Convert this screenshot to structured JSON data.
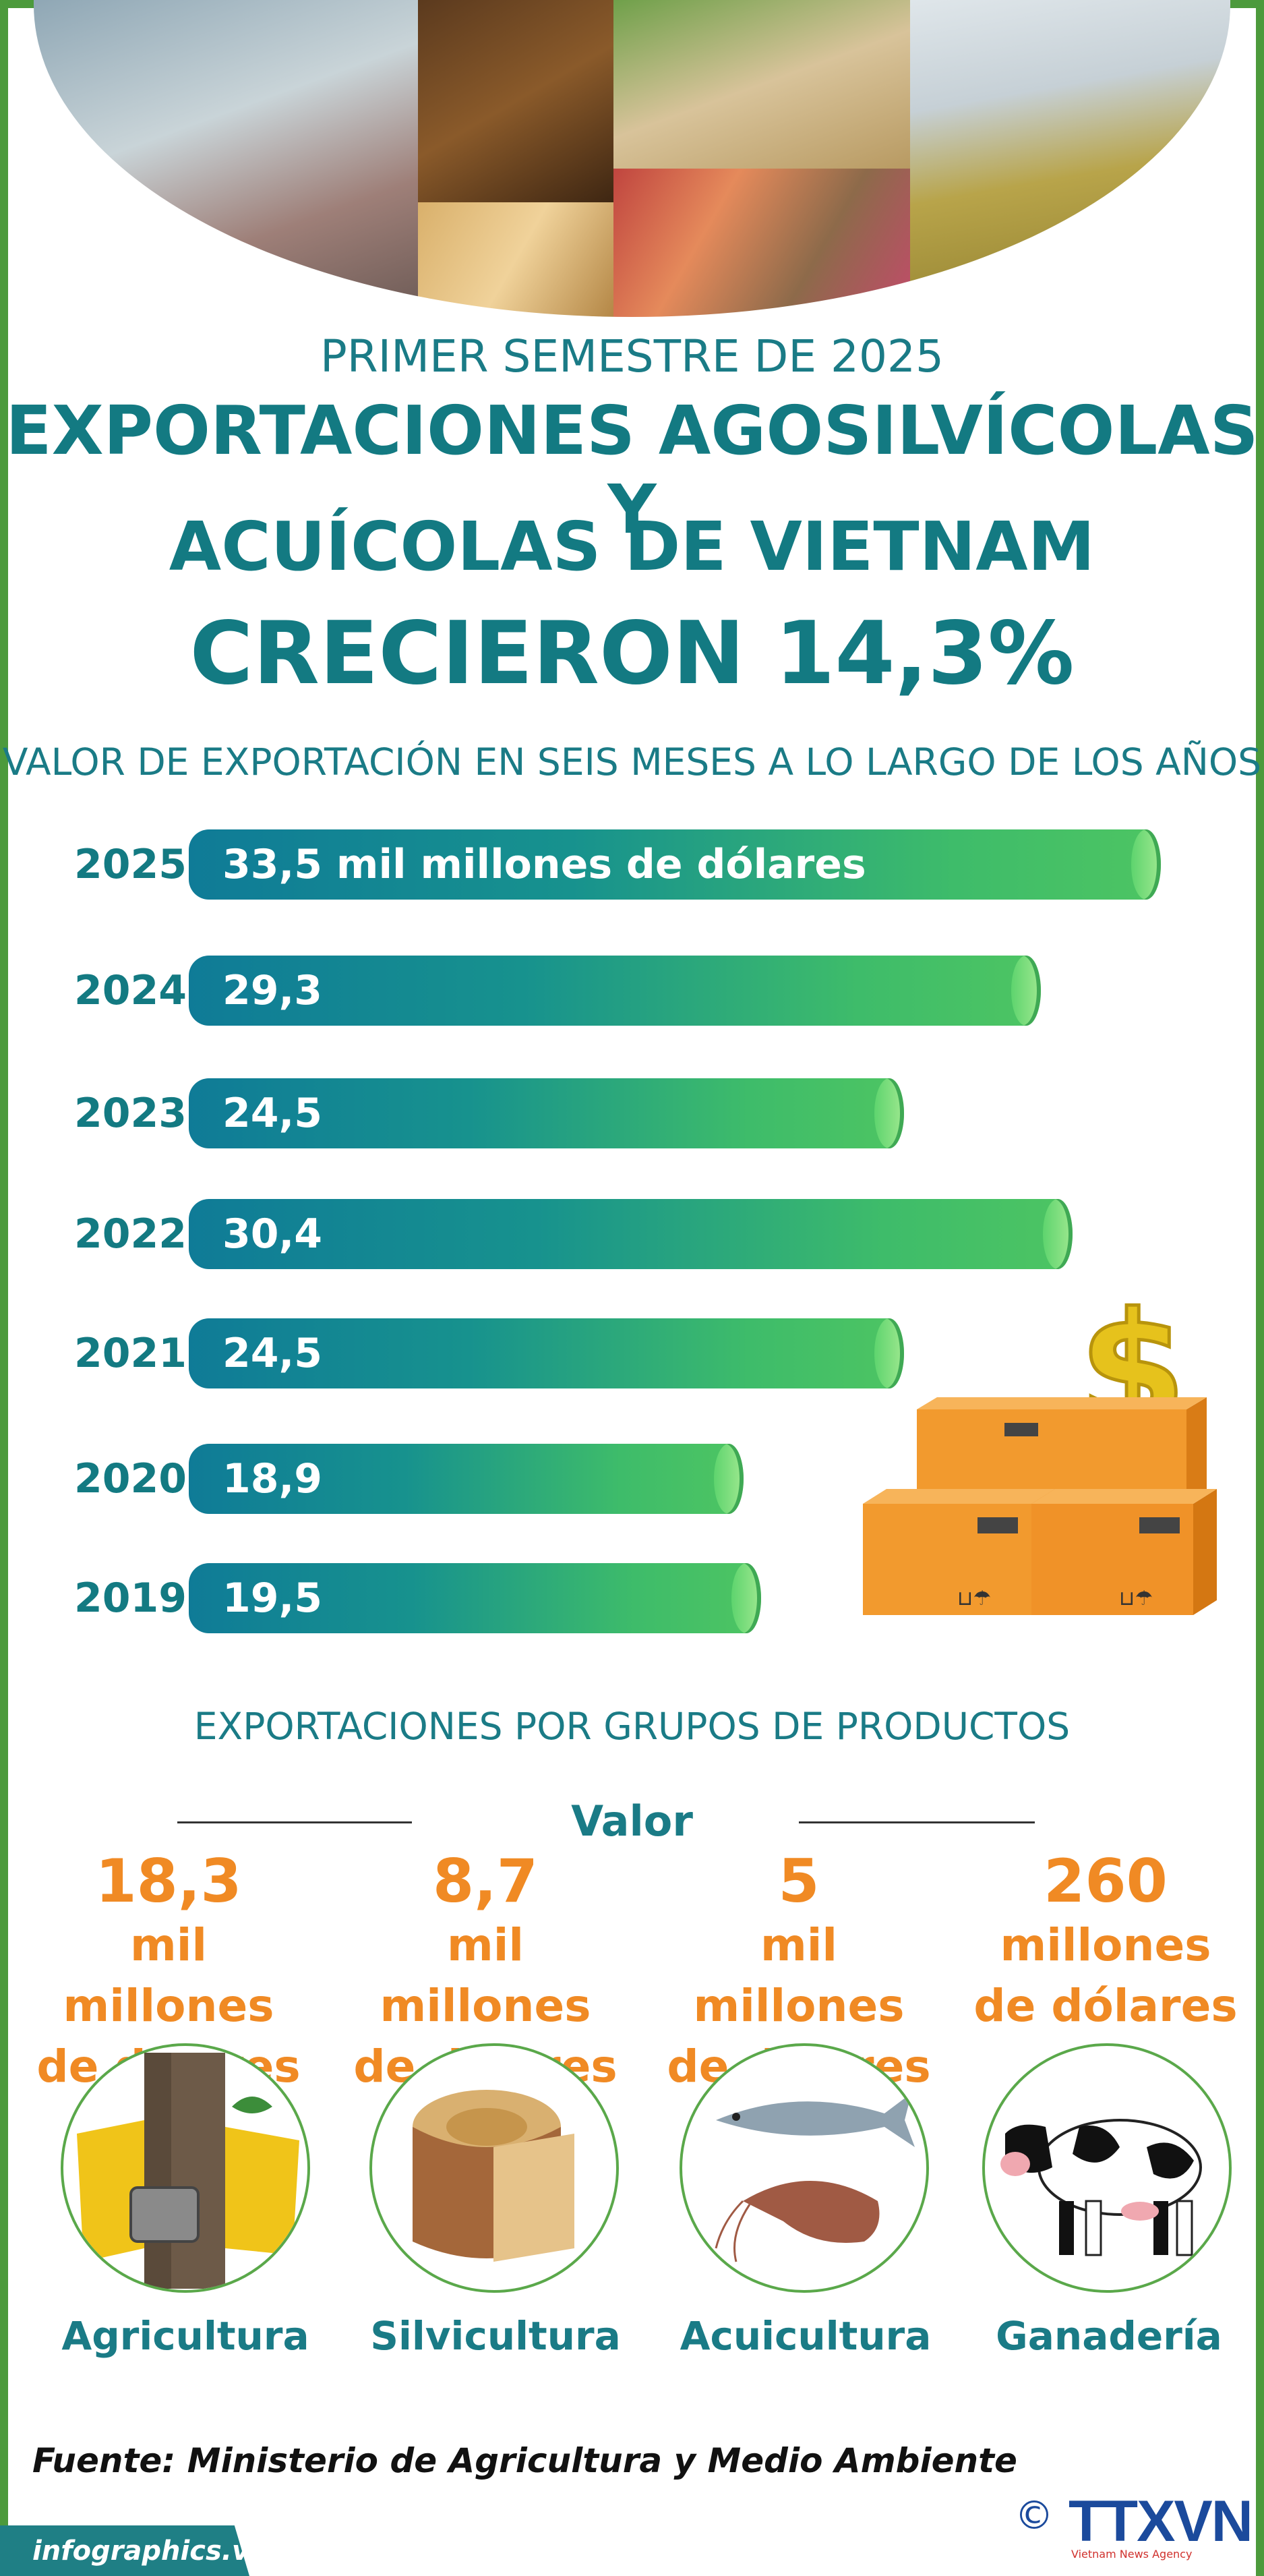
{
  "header": {
    "subtitle": "PRIMER SEMESTRE DE 2025",
    "title_line1": "EXPORTACIONES AGOSILVÍCOLAS Y",
    "title_line2": "ACUÍCOLAS DE VIETNAM",
    "title_line3": "CRECIERON 14,3%"
  },
  "chart_data": {
    "type": "bar",
    "title": "VALOR DE EXPORTACIÓN EN SEIS MESES A LO LARGO DE LOS AÑOS",
    "orientation": "horizontal",
    "categories": [
      "2025",
      "2024",
      "2023",
      "2022",
      "2021",
      "2020",
      "2019"
    ],
    "values": [
      33.5,
      29.3,
      24.5,
      30.4,
      24.5,
      18.9,
      19.5
    ],
    "labels": [
      "33,5 mil millones de dólares",
      "29,3",
      "24,5",
      "30,4",
      "24,5",
      "18,9",
      "19,5"
    ],
    "colors": {
      "bar_start": "#0f7b97",
      "bar_end": "#4cc463",
      "year_text": "#137a82"
    }
  },
  "groups_section": {
    "title": "EXPORTACIONES POR GRUPOS DE PRODUCTOS",
    "value_label": "Valor",
    "items": [
      {
        "value": "18,3",
        "unit_line1": "mil millones",
        "unit_line2": "de dólares",
        "name": "Agricultura",
        "icon": "rubber-tapping-icon"
      },
      {
        "value": "8,7",
        "unit_line1": "mil millones",
        "unit_line2": "de dólares",
        "name": "Silvicultura",
        "icon": "wood-log-icon"
      },
      {
        "value": "5",
        "unit_line1": "mil millones",
        "unit_line2": "de dólares",
        "name": "Acuicultura",
        "icon": "fish-shrimp-icon"
      },
      {
        "value": "260",
        "unit_line1": "millones",
        "unit_line2": "de dólares",
        "name": "Ganadería",
        "icon": "cow-icon"
      }
    ]
  },
  "source": "Fuente: Ministerio de Agricultura y Medio Ambiente",
  "footer": {
    "site": "infographics.vn",
    "logo_text": "TTXVN",
    "logo_sub": "Vietnam News Agency",
    "copyright": "©"
  },
  "colors": {
    "teal": "#137a82",
    "orange": "#f08a24",
    "green_frame": "#4c9a3c"
  }
}
